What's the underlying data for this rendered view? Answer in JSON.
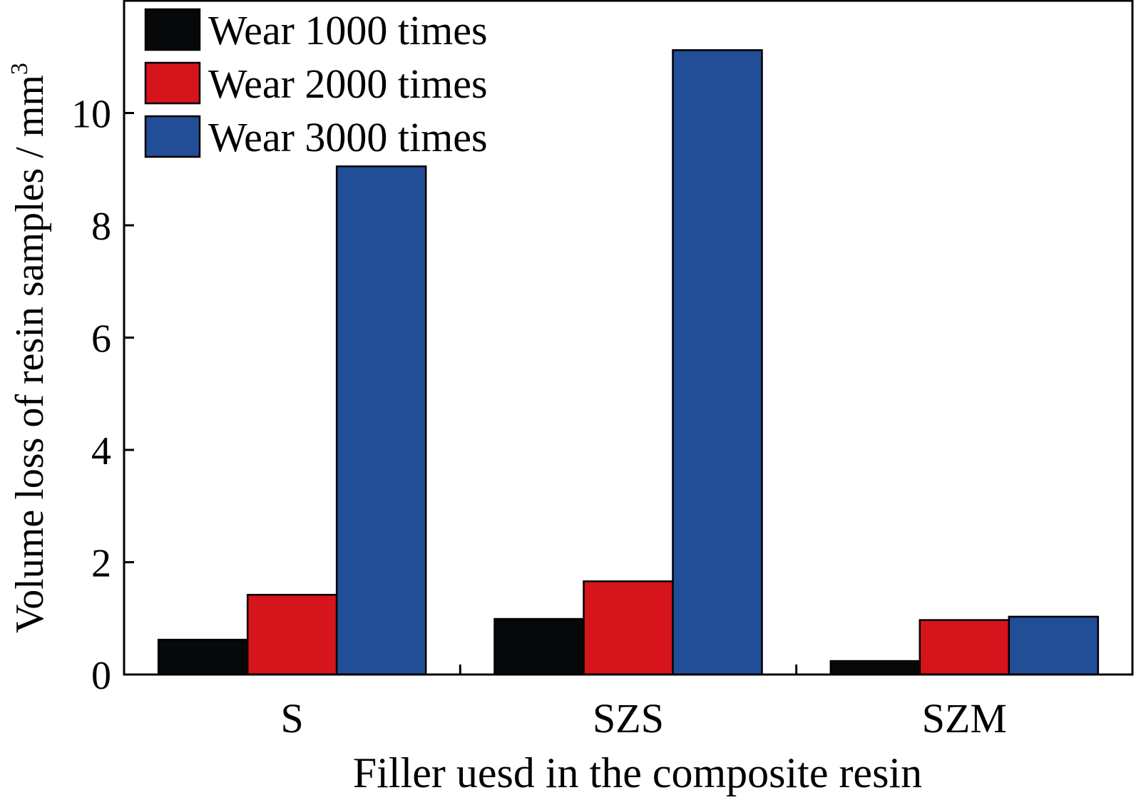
{
  "chart_data": {
    "type": "bar",
    "xlabel": "Filler uesd in the composite resin",
    "ylabel": "Volume loss of resin samples / mm",
    "ylabel_superscript": "3",
    "categories": [
      "S",
      "SZS",
      "SZM"
    ],
    "ylim": [
      0,
      12
    ],
    "yticks": [
      0,
      2,
      4,
      6,
      8,
      10
    ],
    "legend_position": "top-left",
    "grid": false,
    "series": [
      {
        "name": "Wear 1000 times",
        "color": "#060809",
        "values": [
          0.62,
          0.99,
          0.24
        ]
      },
      {
        "name": "Wear 2000 times",
        "color": "#d5141b",
        "values": [
          1.42,
          1.66,
          0.97
        ]
      },
      {
        "name": "Wear 3000 times",
        "color": "#224d97",
        "values": [
          9.05,
          11.12,
          1.03
        ]
      }
    ]
  }
}
